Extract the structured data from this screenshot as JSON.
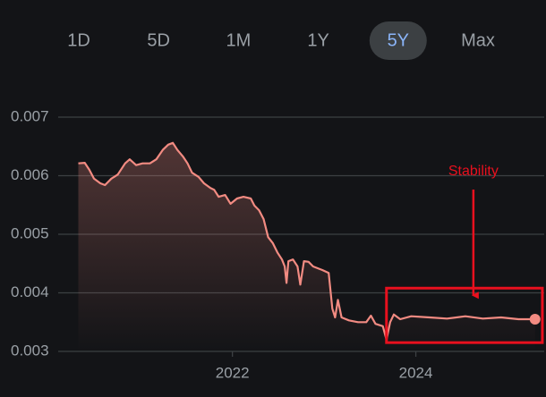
{
  "chart_data": {
    "type": "line",
    "range_buttons": [
      "1D",
      "5D",
      "1M",
      "1Y",
      "5Y",
      "Max"
    ],
    "selected": "5Y",
    "x": [
      2020.32,
      2020.39,
      2020.44,
      2020.49,
      2020.56,
      2020.61,
      2020.68,
      2020.75,
      2020.83,
      2020.88,
      2020.95,
      2021.02,
      2021.1,
      2021.17,
      2021.24,
      2021.3,
      2021.35,
      2021.4,
      2021.46,
      2021.51,
      2021.56,
      2021.63,
      2021.69,
      2021.76,
      2021.8,
      2021.85,
      2021.92,
      2021.98,
      2022.05,
      2022.12,
      2022.2,
      2022.24,
      2022.29,
      2022.34,
      2022.39,
      2022.44,
      2022.49,
      2022.54,
      2022.57,
      2022.59,
      2022.61,
      2022.66,
      2022.71,
      2022.74,
      2022.78,
      2022.83,
      2022.88,
      2022.93,
      2022.98,
      2023.05,
      2023.09,
      2023.12,
      2023.15,
      2023.19,
      2023.27,
      2023.37,
      2023.46,
      2023.51,
      2023.56,
      2023.64,
      2023.68,
      2023.72,
      2023.76,
      2023.83,
      2023.95,
      2024.15,
      2024.34,
      2024.54,
      2024.73,
      2024.93,
      2025.12,
      2025.3
    ],
    "series": [
      {
        "color": "#f28b82",
        "values": [
          0.00621,
          0.00622,
          0.0061,
          0.00595,
          0.00587,
          0.00584,
          0.00595,
          0.00602,
          0.00621,
          0.00628,
          0.00618,
          0.00621,
          0.00621,
          0.00628,
          0.00644,
          0.00653,
          0.00656,
          0.00644,
          0.00633,
          0.00621,
          0.00605,
          0.00598,
          0.00587,
          0.00579,
          0.00576,
          0.00564,
          0.00567,
          0.00552,
          0.00561,
          0.00564,
          0.00561,
          0.00549,
          0.00541,
          0.00526,
          0.00495,
          0.00485,
          0.00469,
          0.00457,
          0.00445,
          0.00417,
          0.00454,
          0.00457,
          0.00445,
          0.00414,
          0.00454,
          0.00453,
          0.00445,
          0.00442,
          0.00439,
          0.00434,
          0.00373,
          0.00358,
          0.00388,
          0.00358,
          0.00353,
          0.0035,
          0.0035,
          0.00361,
          0.00347,
          0.00343,
          0.0032,
          0.0035,
          0.00363,
          0.00355,
          0.0036,
          0.00358,
          0.00356,
          0.0036,
          0.00356,
          0.00358,
          0.00355,
          0.00355
        ]
      }
    ],
    "xlim": [
      2020.1,
      2025.4
    ],
    "xticks": [
      2022,
      2024
    ],
    "ylim": [
      0.003,
      0.007
    ],
    "yticks": [
      0.003,
      0.004,
      0.005,
      0.006,
      0.007
    ],
    "grid": true,
    "annotations": [
      {
        "text": "Stability",
        "color": "#e8101e",
        "x": [
          2023.68,
          2025.38
        ],
        "y": [
          0.00315,
          0.00408
        ]
      }
    ]
  }
}
